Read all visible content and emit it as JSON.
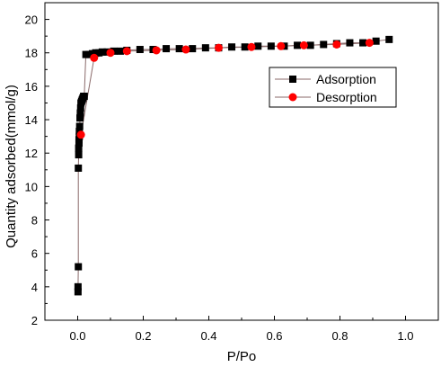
{
  "chart_data": {
    "type": "scatter",
    "title": "",
    "xlabel": "P/Po",
    "ylabel": "Quantity adsorbed(mmol/g)",
    "xlim": [
      -0.1,
      1.1
    ],
    "ylim": [
      2,
      21
    ],
    "xticks": [
      0.0,
      0.2,
      0.4,
      0.6,
      0.8,
      1.0
    ],
    "yticks": [
      2,
      4,
      6,
      8,
      10,
      12,
      14,
      16,
      18,
      20
    ],
    "xtick_labels": [
      "0.0",
      "0.2",
      "0.4",
      "0.6",
      "0.8",
      "1.0"
    ],
    "ytick_labels": [
      "2",
      "4",
      "6",
      "8",
      "10",
      "12",
      "14",
      "16",
      "18",
      "20"
    ],
    "grid": false,
    "legend": {
      "position": "top-right",
      "entries": [
        "Adsorption",
        "Desorption"
      ]
    },
    "series": [
      {
        "name": "Adsorption",
        "marker": "square",
        "color": "#000000",
        "line_color": "#8a6a6a",
        "x": [
          0.001,
          0.001,
          0.002,
          0.002,
          0.003,
          0.003,
          0.004,
          0.004,
          0.005,
          0.005,
          0.006,
          0.007,
          0.008,
          0.009,
          0.01,
          0.012,
          0.014,
          0.016,
          0.018,
          0.02,
          0.025,
          0.035,
          0.045,
          0.055,
          0.065,
          0.075,
          0.09,
          0.11,
          0.13,
          0.15,
          0.19,
          0.23,
          0.27,
          0.31,
          0.35,
          0.39,
          0.43,
          0.47,
          0.51,
          0.55,
          0.59,
          0.63,
          0.67,
          0.71,
          0.75,
          0.79,
          0.83,
          0.87,
          0.91,
          0.95
        ],
        "y": [
          3.7,
          4.0,
          5.2,
          11.1,
          11.9,
          12.3,
          12.6,
          12.8,
          13.0,
          13.3,
          13.6,
          14.1,
          14.4,
          14.7,
          15.0,
          15.1,
          15.2,
          15.3,
          15.4,
          15.4,
          17.9,
          17.9,
          17.95,
          18.0,
          18.0,
          18.05,
          18.05,
          18.1,
          18.1,
          18.15,
          18.2,
          18.2,
          18.25,
          18.25,
          18.25,
          18.3,
          18.3,
          18.35,
          18.35,
          18.4,
          18.4,
          18.4,
          18.45,
          18.45,
          18.5,
          18.55,
          18.6,
          18.6,
          18.7,
          18.8
        ]
      },
      {
        "name": "Desorption",
        "marker": "circle",
        "color": "#ff0000",
        "line_color": "#8a6a6a",
        "x": [
          0.89,
          0.79,
          0.69,
          0.62,
          0.53,
          0.43,
          0.33,
          0.24,
          0.15,
          0.1,
          0.05,
          0.01
        ],
        "y": [
          18.6,
          18.5,
          18.45,
          18.4,
          18.35,
          18.3,
          18.2,
          18.15,
          18.1,
          18.0,
          17.7,
          13.1
        ]
      }
    ]
  }
}
